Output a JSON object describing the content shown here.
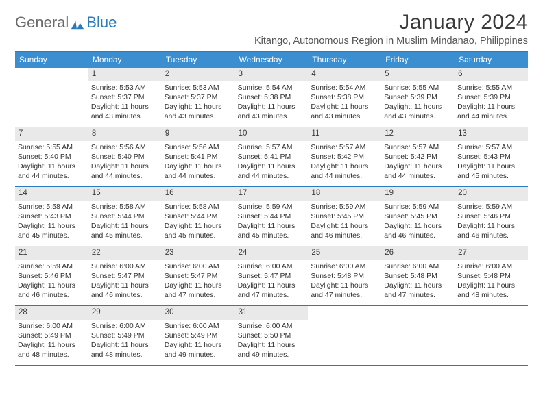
{
  "branding": {
    "logo_text_1": "General",
    "logo_text_2": "Blue",
    "logo_gray": "#6a6a6a",
    "logo_blue": "#2a7abf"
  },
  "header": {
    "month_title": "January 2024",
    "location": "Kitango, Autonomous Region in Muslim Mindanao, Philippines"
  },
  "colors": {
    "accent": "#2a7abf",
    "header_row_bg": "#3b8fd1",
    "header_row_text": "#ffffff",
    "daynum_bg": "#e9e9e9",
    "text": "#333333",
    "bg": "#ffffff"
  },
  "days_of_week": [
    "Sunday",
    "Monday",
    "Tuesday",
    "Wednesday",
    "Thursday",
    "Friday",
    "Saturday"
  ],
  "weeks": [
    [
      {
        "n": "",
        "sunrise": "",
        "sunset": "",
        "daylight1": "",
        "daylight2": "",
        "empty": true
      },
      {
        "n": "1",
        "sunrise": "Sunrise: 5:53 AM",
        "sunset": "Sunset: 5:37 PM",
        "daylight1": "Daylight: 11 hours",
        "daylight2": "and 43 minutes."
      },
      {
        "n": "2",
        "sunrise": "Sunrise: 5:53 AM",
        "sunset": "Sunset: 5:37 PM",
        "daylight1": "Daylight: 11 hours",
        "daylight2": "and 43 minutes."
      },
      {
        "n": "3",
        "sunrise": "Sunrise: 5:54 AM",
        "sunset": "Sunset: 5:38 PM",
        "daylight1": "Daylight: 11 hours",
        "daylight2": "and 43 minutes."
      },
      {
        "n": "4",
        "sunrise": "Sunrise: 5:54 AM",
        "sunset": "Sunset: 5:38 PM",
        "daylight1": "Daylight: 11 hours",
        "daylight2": "and 43 minutes."
      },
      {
        "n": "5",
        "sunrise": "Sunrise: 5:55 AM",
        "sunset": "Sunset: 5:39 PM",
        "daylight1": "Daylight: 11 hours",
        "daylight2": "and 43 minutes."
      },
      {
        "n": "6",
        "sunrise": "Sunrise: 5:55 AM",
        "sunset": "Sunset: 5:39 PM",
        "daylight1": "Daylight: 11 hours",
        "daylight2": "and 44 minutes."
      }
    ],
    [
      {
        "n": "7",
        "sunrise": "Sunrise: 5:55 AM",
        "sunset": "Sunset: 5:40 PM",
        "daylight1": "Daylight: 11 hours",
        "daylight2": "and 44 minutes."
      },
      {
        "n": "8",
        "sunrise": "Sunrise: 5:56 AM",
        "sunset": "Sunset: 5:40 PM",
        "daylight1": "Daylight: 11 hours",
        "daylight2": "and 44 minutes."
      },
      {
        "n": "9",
        "sunrise": "Sunrise: 5:56 AM",
        "sunset": "Sunset: 5:41 PM",
        "daylight1": "Daylight: 11 hours",
        "daylight2": "and 44 minutes."
      },
      {
        "n": "10",
        "sunrise": "Sunrise: 5:57 AM",
        "sunset": "Sunset: 5:41 PM",
        "daylight1": "Daylight: 11 hours",
        "daylight2": "and 44 minutes."
      },
      {
        "n": "11",
        "sunrise": "Sunrise: 5:57 AM",
        "sunset": "Sunset: 5:42 PM",
        "daylight1": "Daylight: 11 hours",
        "daylight2": "and 44 minutes."
      },
      {
        "n": "12",
        "sunrise": "Sunrise: 5:57 AM",
        "sunset": "Sunset: 5:42 PM",
        "daylight1": "Daylight: 11 hours",
        "daylight2": "and 44 minutes."
      },
      {
        "n": "13",
        "sunrise": "Sunrise: 5:57 AM",
        "sunset": "Sunset: 5:43 PM",
        "daylight1": "Daylight: 11 hours",
        "daylight2": "and 45 minutes."
      }
    ],
    [
      {
        "n": "14",
        "sunrise": "Sunrise: 5:58 AM",
        "sunset": "Sunset: 5:43 PM",
        "daylight1": "Daylight: 11 hours",
        "daylight2": "and 45 minutes."
      },
      {
        "n": "15",
        "sunrise": "Sunrise: 5:58 AM",
        "sunset": "Sunset: 5:44 PM",
        "daylight1": "Daylight: 11 hours",
        "daylight2": "and 45 minutes."
      },
      {
        "n": "16",
        "sunrise": "Sunrise: 5:58 AM",
        "sunset": "Sunset: 5:44 PM",
        "daylight1": "Daylight: 11 hours",
        "daylight2": "and 45 minutes."
      },
      {
        "n": "17",
        "sunrise": "Sunrise: 5:59 AM",
        "sunset": "Sunset: 5:44 PM",
        "daylight1": "Daylight: 11 hours",
        "daylight2": "and 45 minutes."
      },
      {
        "n": "18",
        "sunrise": "Sunrise: 5:59 AM",
        "sunset": "Sunset: 5:45 PM",
        "daylight1": "Daylight: 11 hours",
        "daylight2": "and 46 minutes."
      },
      {
        "n": "19",
        "sunrise": "Sunrise: 5:59 AM",
        "sunset": "Sunset: 5:45 PM",
        "daylight1": "Daylight: 11 hours",
        "daylight2": "and 46 minutes."
      },
      {
        "n": "20",
        "sunrise": "Sunrise: 5:59 AM",
        "sunset": "Sunset: 5:46 PM",
        "daylight1": "Daylight: 11 hours",
        "daylight2": "and 46 minutes."
      }
    ],
    [
      {
        "n": "21",
        "sunrise": "Sunrise: 5:59 AM",
        "sunset": "Sunset: 5:46 PM",
        "daylight1": "Daylight: 11 hours",
        "daylight2": "and 46 minutes."
      },
      {
        "n": "22",
        "sunrise": "Sunrise: 6:00 AM",
        "sunset": "Sunset: 5:47 PM",
        "daylight1": "Daylight: 11 hours",
        "daylight2": "and 46 minutes."
      },
      {
        "n": "23",
        "sunrise": "Sunrise: 6:00 AM",
        "sunset": "Sunset: 5:47 PM",
        "daylight1": "Daylight: 11 hours",
        "daylight2": "and 47 minutes."
      },
      {
        "n": "24",
        "sunrise": "Sunrise: 6:00 AM",
        "sunset": "Sunset: 5:47 PM",
        "daylight1": "Daylight: 11 hours",
        "daylight2": "and 47 minutes."
      },
      {
        "n": "25",
        "sunrise": "Sunrise: 6:00 AM",
        "sunset": "Sunset: 5:48 PM",
        "daylight1": "Daylight: 11 hours",
        "daylight2": "and 47 minutes."
      },
      {
        "n": "26",
        "sunrise": "Sunrise: 6:00 AM",
        "sunset": "Sunset: 5:48 PM",
        "daylight1": "Daylight: 11 hours",
        "daylight2": "and 47 minutes."
      },
      {
        "n": "27",
        "sunrise": "Sunrise: 6:00 AM",
        "sunset": "Sunset: 5:48 PM",
        "daylight1": "Daylight: 11 hours",
        "daylight2": "and 48 minutes."
      }
    ],
    [
      {
        "n": "28",
        "sunrise": "Sunrise: 6:00 AM",
        "sunset": "Sunset: 5:49 PM",
        "daylight1": "Daylight: 11 hours",
        "daylight2": "and 48 minutes."
      },
      {
        "n": "29",
        "sunrise": "Sunrise: 6:00 AM",
        "sunset": "Sunset: 5:49 PM",
        "daylight1": "Daylight: 11 hours",
        "daylight2": "and 48 minutes."
      },
      {
        "n": "30",
        "sunrise": "Sunrise: 6:00 AM",
        "sunset": "Sunset: 5:49 PM",
        "daylight1": "Daylight: 11 hours",
        "daylight2": "and 49 minutes."
      },
      {
        "n": "31",
        "sunrise": "Sunrise: 6:00 AM",
        "sunset": "Sunset: 5:50 PM",
        "daylight1": "Daylight: 11 hours",
        "daylight2": "and 49 minutes."
      },
      {
        "n": "",
        "sunrise": "",
        "sunset": "",
        "daylight1": "",
        "daylight2": "",
        "empty": true
      },
      {
        "n": "",
        "sunrise": "",
        "sunset": "",
        "daylight1": "",
        "daylight2": "",
        "empty": true
      },
      {
        "n": "",
        "sunrise": "",
        "sunset": "",
        "daylight1": "",
        "daylight2": "",
        "empty": true
      }
    ]
  ]
}
